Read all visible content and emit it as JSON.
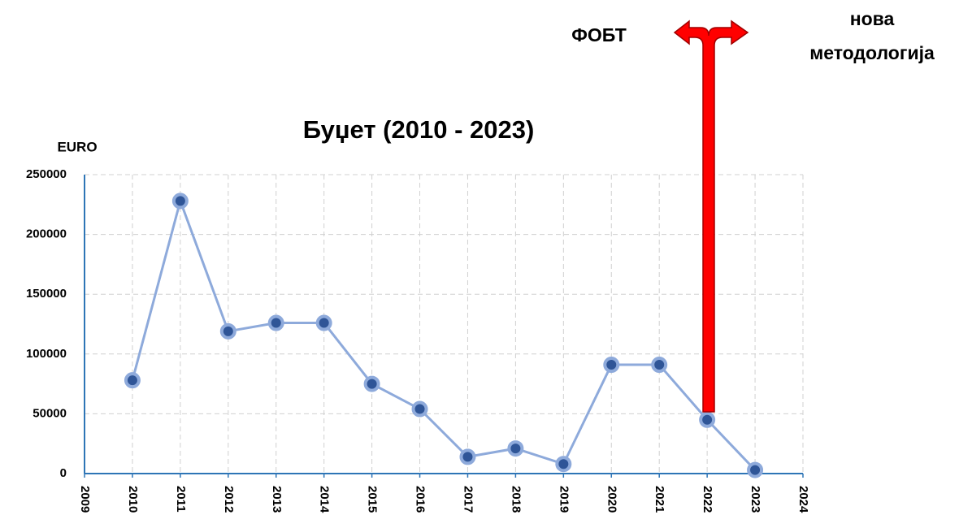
{
  "chart_data": {
    "type": "line",
    "title": "Буџет (2010 - 2023)",
    "y_label": "EURO",
    "annotations": {
      "left": "ФОБТ",
      "right": [
        "нова",
        "методологија"
      ]
    },
    "x": [
      2010,
      2011,
      2012,
      2013,
      2014,
      2015,
      2016,
      2017,
      2018,
      2019,
      2020,
      2021,
      2022,
      2023
    ],
    "series": [
      {
        "name": "Буџет",
        "color": "#8eaadb",
        "marker_color": "#2f5597",
        "values": [
          78000,
          228000,
          119000,
          126000,
          126000,
          75000,
          54000,
          14000,
          21000,
          8000,
          91000,
          91000,
          45000,
          3000
        ]
      }
    ],
    "xlim": [
      2009,
      2024
    ],
    "xticks": [
      2009,
      2010,
      2011,
      2012,
      2013,
      2014,
      2015,
      2016,
      2017,
      2018,
      2019,
      2020,
      2021,
      2022,
      2023,
      2024
    ],
    "ylim": [
      0,
      250000
    ],
    "yticks": [
      0,
      50000,
      100000,
      150000,
      200000,
      250000
    ],
    "grid": true
  }
}
